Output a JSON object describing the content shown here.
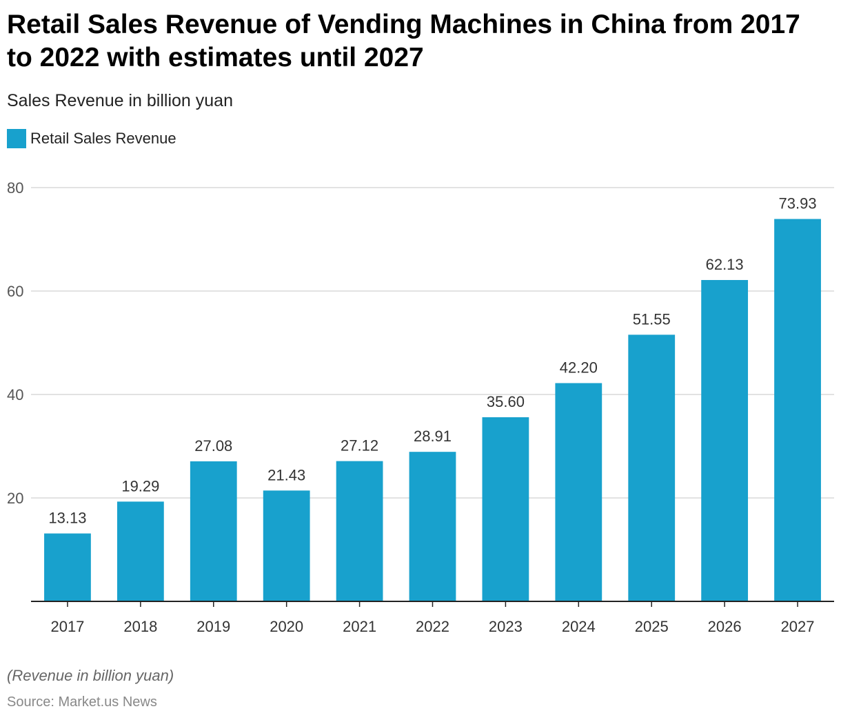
{
  "header": {
    "title": "Retail Sales Revenue of Vending Machines in China from 2017 to 2022 with estimates until 2027",
    "subtitle": "Sales Revenue in billion yuan"
  },
  "legend": {
    "label": "Retail Sales Revenue"
  },
  "footer": {
    "note": "(Revenue in billion yuan)",
    "source": "Source: Market.us News"
  },
  "colors": {
    "bar": "#18a1cd",
    "grid": "#d9d9d9",
    "axis": "#222222",
    "tick_text": "#555555",
    "label_text": "#333333"
  },
  "chart_data": {
    "type": "bar",
    "title": "Retail Sales Revenue of Vending Machines in China from 2017 to 2022 with estimates until 2027",
    "subtitle": "Sales Revenue in billion yuan",
    "xlabel": "",
    "ylabel": "",
    "categories": [
      "2017",
      "2018",
      "2019",
      "2020",
      "2021",
      "2022",
      "2023",
      "2024",
      "2025",
      "2026",
      "2027"
    ],
    "series": [
      {
        "name": "Retail Sales Revenue",
        "values": [
          13.13,
          19.29,
          27.08,
          21.43,
          27.12,
          28.91,
          35.6,
          42.2,
          51.55,
          62.13,
          73.93
        ],
        "labels": [
          "13.13",
          "19.29",
          "27.08",
          "21.43",
          "27.12",
          "28.91",
          "35.60",
          "42.20",
          "51.55",
          "62.13",
          "73.93"
        ]
      }
    ],
    "ylim": [
      0,
      80
    ],
    "yticks": [
      20,
      40,
      60,
      80
    ],
    "grid": true,
    "legend": "top-left"
  }
}
